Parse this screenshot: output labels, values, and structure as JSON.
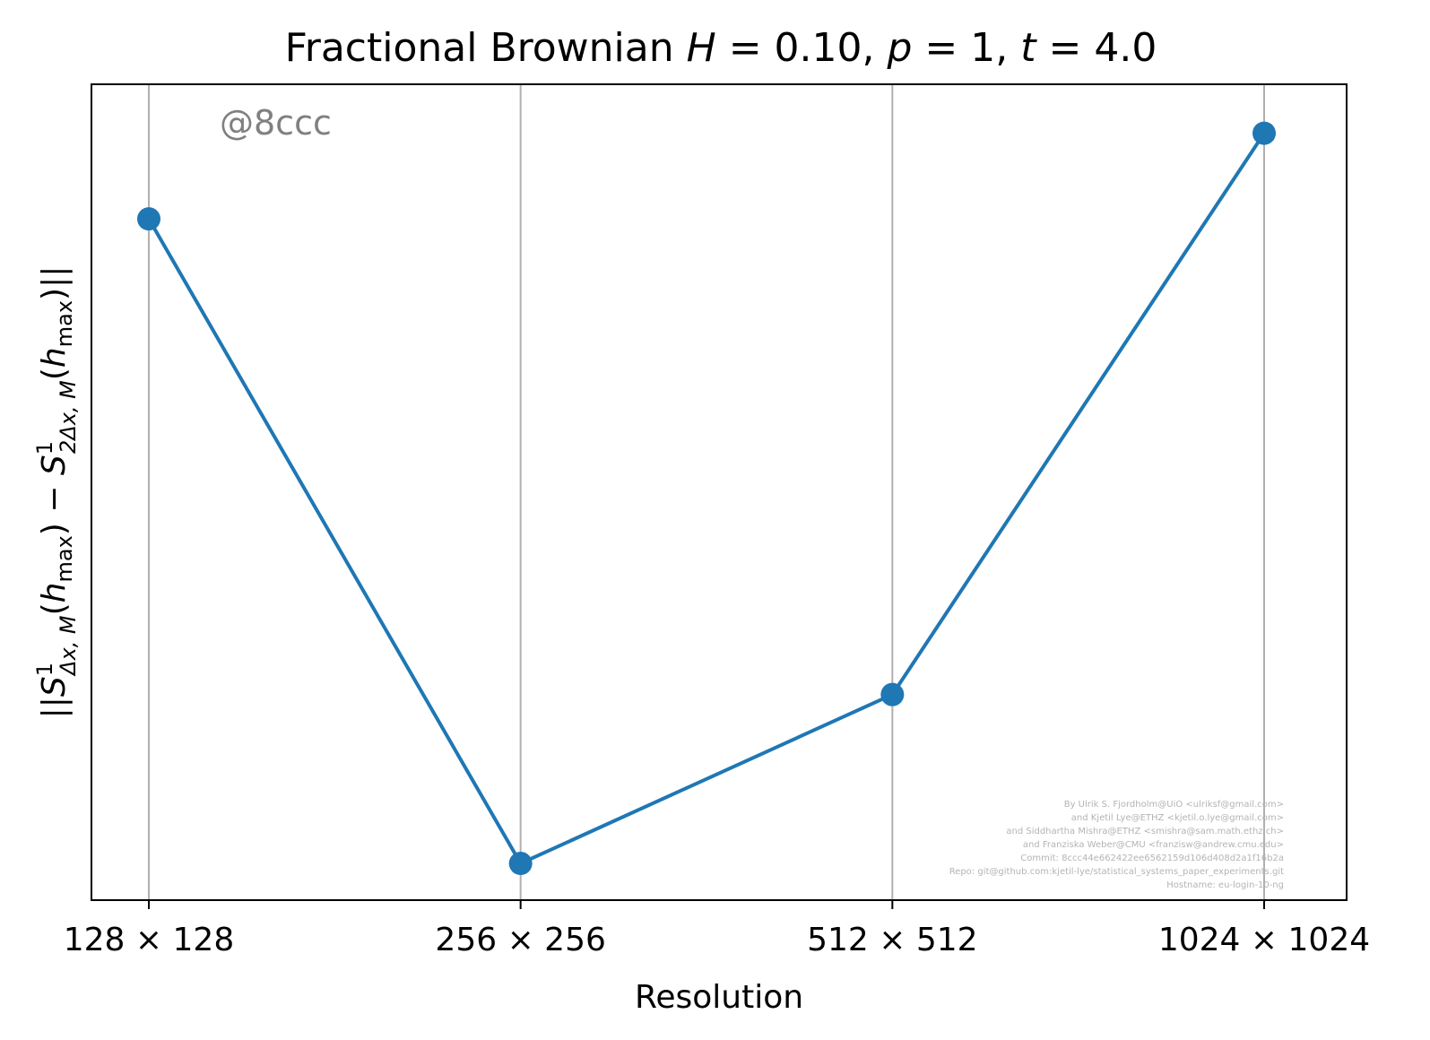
{
  "chart_data": {
    "type": "line",
    "title": {
      "prefix": "Fractional Brownian ",
      "H_symbol": "H",
      "H_value": " = 0.10, ",
      "p_symbol": "p",
      "p_value": " = 1, ",
      "t_symbol": "t",
      "t_value": " = 4.0"
    },
    "xlabel": "Resolution",
    "ylabel": {
      "open": "||",
      "S1": "S",
      "sup1": "1",
      "sub1": "Δx, M",
      "paren1_open": "(",
      "h1": "h",
      "hsub1": "max",
      "paren1_close": ")",
      "minus": " − ",
      "S2": "S",
      "sup2": "1",
      "sub2": "2Δx, M",
      "paren2_open": "(",
      "h2": "h",
      "hsub2": "max",
      "paren2_close": ")",
      "close": "||"
    },
    "categories": [
      "128 × 128",
      "256 × 256",
      "512 × 512",
      "1024 × 1024"
    ],
    "x": [
      128,
      256,
      512,
      1024
    ],
    "x_scale": "log2",
    "values": [
      0.835,
      0.045,
      0.252,
      0.94
    ],
    "ylim": [
      0,
      1
    ],
    "y_ticks_shown": false,
    "grid": "x-only",
    "series_color": "#1f77b4",
    "grid_color": "#b0b0b0",
    "stamp": "@8ccc",
    "credits": [
      "By Ulrik S. Fjordholm@UiO <ulriksf@gmail.com>",
      "and Kjetil Lye@ETHZ <kjetil.o.lye@gmail.com>",
      "and Siddhartha Mishra@ETHZ <smishra@sam.math.ethz.ch>",
      "and Franziska Weber@CMU <franzisw@andrew.cmu.edu>",
      "Commit: 8ccc44e662422ee6562159d106d408d2a1f16b2a",
      "Repo: git@github.com:kjetil-lye/statistical_systems_paper_experiments.git",
      "Hostname: eu-login-10-ng"
    ]
  }
}
